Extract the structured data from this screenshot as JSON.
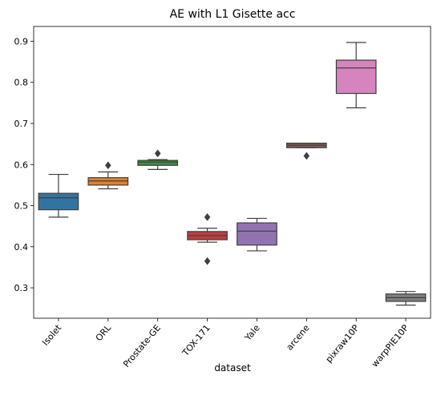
{
  "chart_data": {
    "type": "box",
    "title": "AE with L1 Gisette acc",
    "xlabel": "dataset",
    "ylabel": "",
    "ylim": [
      0.226,
      0.936
    ],
    "yticks": [
      0.3,
      0.4,
      0.5,
      0.6,
      0.7,
      0.8,
      0.9
    ],
    "ytick_labels": [
      "0.3",
      "0.4",
      "0.5",
      "0.6",
      "0.7",
      "0.8",
      "0.9"
    ],
    "grid": false,
    "legend": "none",
    "categories": [
      "Isolet",
      "ORL",
      "Prostate-GE",
      "TOX-171",
      "Yale",
      "arcene",
      "pixraw10P",
      "warpPIE10P"
    ],
    "boxes": [
      {
        "category": "Isolet",
        "whisker_low": 0.472,
        "q1": 0.49,
        "median": 0.519,
        "q3": 0.53,
        "whisker_high": 0.576,
        "outliers": [],
        "color": "#3274a1"
      },
      {
        "category": "ORL",
        "whisker_low": 0.541,
        "q1": 0.55,
        "median": 0.56,
        "q3": 0.568,
        "whisker_high": 0.582,
        "outliers": [
          0.598
        ],
        "color": "#e1812c"
      },
      {
        "category": "Prostate-GE",
        "whisker_low": 0.588,
        "q1": 0.598,
        "median": 0.606,
        "q3": 0.61,
        "whisker_high": 0.612,
        "outliers": [
          0.627
        ],
        "color": "#3a923a"
      },
      {
        "category": "TOX-171",
        "whisker_low": 0.411,
        "q1": 0.417,
        "median": 0.427,
        "q3": 0.437,
        "whisker_high": 0.445,
        "outliers": [
          0.472,
          0.365
        ],
        "color": "#c03d3e"
      },
      {
        "category": "Yale",
        "whisker_low": 0.39,
        "q1": 0.404,
        "median": 0.438,
        "q3": 0.458,
        "whisker_high": 0.469,
        "outliers": [],
        "color": "#9372b2"
      },
      {
        "category": "arcene",
        "whisker_low": 0.641,
        "q1": 0.641,
        "median": 0.647,
        "q3": 0.652,
        "whisker_high": 0.652,
        "outliers": [
          0.621
        ],
        "color": "#845b53"
      },
      {
        "category": "pixraw10P",
        "whisker_low": 0.738,
        "q1": 0.773,
        "median": 0.835,
        "q3": 0.854,
        "whisker_high": 0.897,
        "outliers": [],
        "color": "#d684bd"
      },
      {
        "category": "warpPIE10P",
        "whisker_low": 0.258,
        "q1": 0.267,
        "median": 0.276,
        "q3": 0.285,
        "whisker_high": 0.291,
        "outliers": [],
        "color": "#7f7f7f"
      }
    ]
  }
}
